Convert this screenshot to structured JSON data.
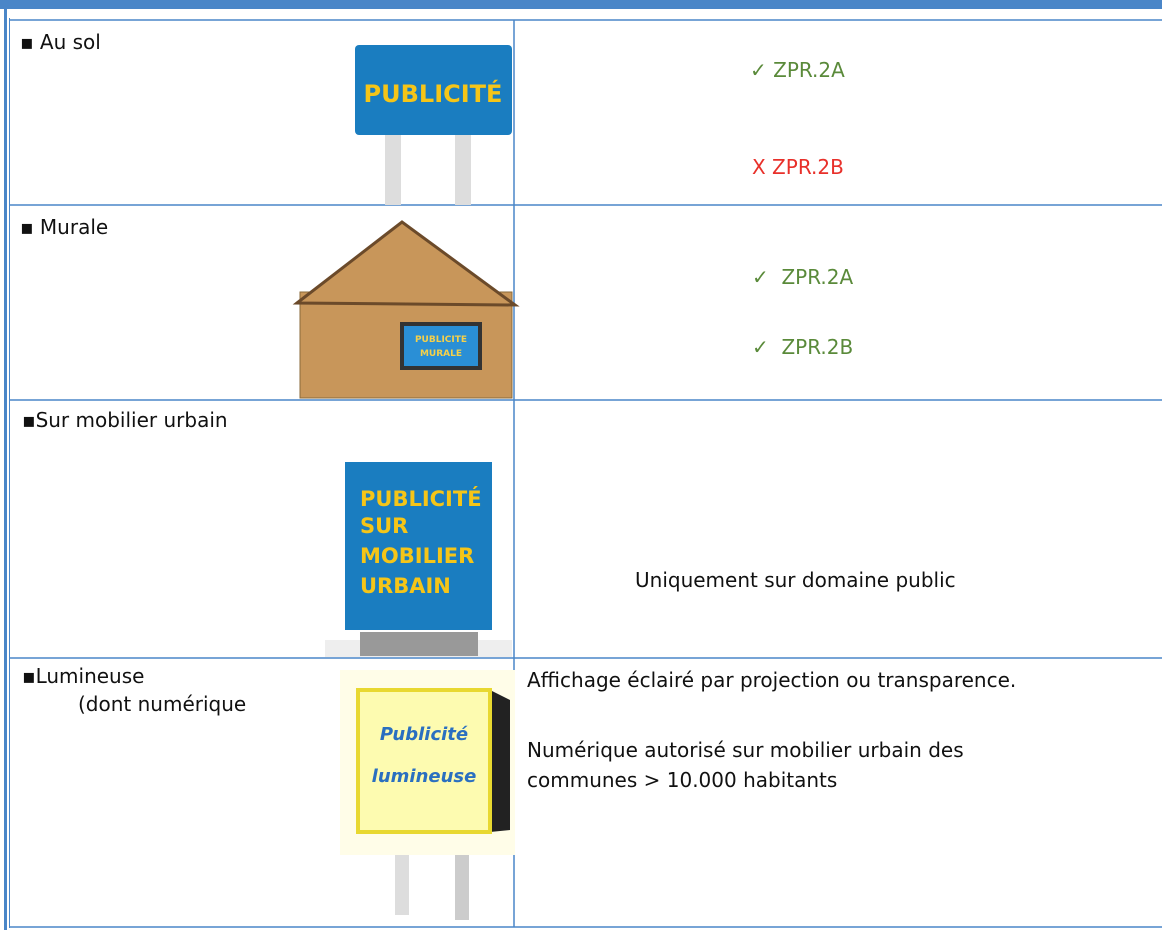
{
  "table": {
    "rows": [
      {
        "label": [
          "Au sol"
        ],
        "sign": [
          "PUBLICITÉ"
        ],
        "right": [
          "✓ ZPR.2A",
          "X ZPR.2B"
        ]
      },
      {
        "label": [
          "Murale"
        ],
        "sign": [
          "PUBLICITE",
          "MURALE"
        ],
        "right": [
          "✓  ZPR.2A",
          "✓  ZPR.2B"
        ]
      },
      {
        "label": [
          "Sur mobilier urbain"
        ],
        "sign": [
          "PUBLICITÉ",
          "SUR",
          "MOBILIER",
          "URBAIN"
        ],
        "right": [
          "Uniquement sur domaine public"
        ]
      },
      {
        "label": [
          "Lumineuse",
          "(dont numérique"
        ],
        "sign": [
          "Publicité",
          "lumineuse"
        ],
        "right": [
          "Affichage éclairé par projection ou transparence.",
          "Numérique autorisé sur mobilier urbain des communes > 10.000 habitants"
        ]
      }
    ]
  }
}
